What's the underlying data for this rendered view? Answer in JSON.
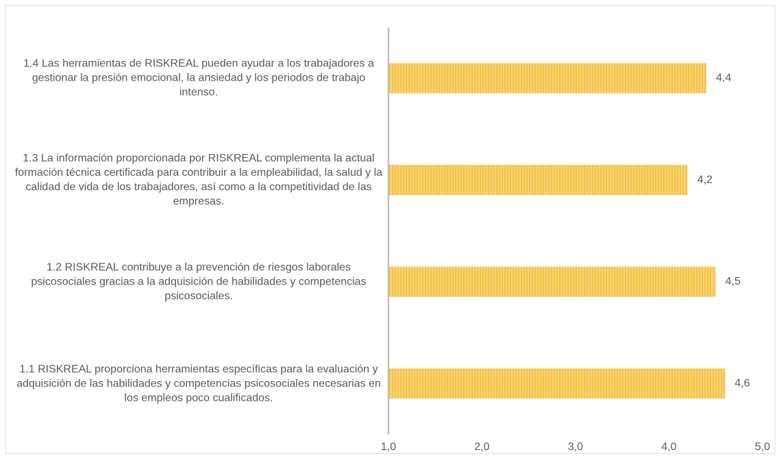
{
  "chart_data": {
    "type": "bar",
    "orientation": "horizontal",
    "categories": [
      "1.1 RISKREAL proporciona herramientas específicas para la evaluación y adquisición de las habilidades y competencias psicosociales necesarias en los empleos poco cualificados.",
      "1.2 RISKREAL contribuye a la prevención de riesgos laborales psicosociales gracias a la adquisición de habilidades y competencias psicosociales.",
      "1.3 La información proporcionada por RISKREAL complementa la actual formación técnica certificada para contribuir a la empleabilidad, la salud y la calidad de vida de los trabajadores, así como a la competitividad de las empresas.",
      "1.4 Las herramientas de RISKREAL pueden ayudar a los trabajadores a gestionar la presión emocional, la ansiedad y los periodos de trabajo intenso."
    ],
    "values": [
      4.6,
      4.5,
      4.2,
      4.4
    ],
    "value_labels": [
      "4,6",
      "4,5",
      "4,2",
      "4,4"
    ],
    "color": "#f5c242",
    "xlim": [
      1,
      5
    ],
    "xticks": [
      {
        "value": 1,
        "label": "1,0"
      },
      {
        "value": 2,
        "label": "2,0"
      },
      {
        "value": 3,
        "label": "3,0"
      },
      {
        "value": 4,
        "label": "4,0"
      },
      {
        "value": 5,
        "label": "5,0"
      }
    ]
  }
}
